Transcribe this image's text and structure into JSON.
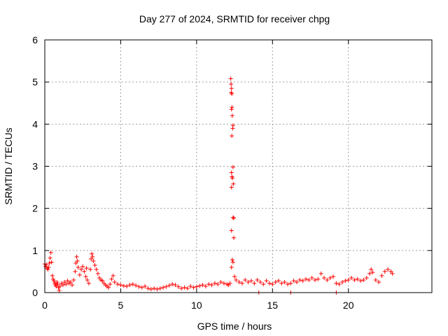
{
  "chart_data": {
    "type": "scatter",
    "title": "Day 277 of 2024, SRMTID for receiver chpg",
    "xlabel": "GPS time / hours",
    "ylabel": "SRMTID / TECUs",
    "xlim": [
      0,
      25.5
    ],
    "ylim": [
      0,
      6
    ],
    "xticks": [
      0,
      5,
      10,
      15,
      20
    ],
    "yticks": [
      0,
      1,
      2,
      3,
      4,
      5,
      6
    ],
    "grid": true,
    "marker": "+",
    "color": "#ff0000",
    "series": [
      {
        "name": "SRMTID",
        "points": [
          [
            0.0,
            0.68
          ],
          [
            0.05,
            0.62
          ],
          [
            0.1,
            0.66
          ],
          [
            0.15,
            0.58
          ],
          [
            0.2,
            0.55
          ],
          [
            0.25,
            0.6
          ],
          [
            0.3,
            0.7
          ],
          [
            0.35,
            0.82
          ],
          [
            0.4,
            0.95
          ],
          [
            0.45,
            0.72
          ],
          [
            0.5,
            0.4
          ],
          [
            0.55,
            0.32
          ],
          [
            0.6,
            0.28
          ],
          [
            0.65,
            0.22
          ],
          [
            0.7,
            0.18
          ],
          [
            0.75,
            0.15
          ],
          [
            0.8,
            0.25
          ],
          [
            0.85,
            0.2
          ],
          [
            0.9,
            0.12
          ],
          [
            0.95,
            0.05
          ],
          [
            1.0,
            0.15
          ],
          [
            1.1,
            0.22
          ],
          [
            1.2,
            0.18
          ],
          [
            1.3,
            0.25
          ],
          [
            1.4,
            0.2
          ],
          [
            1.5,
            0.28
          ],
          [
            1.6,
            0.22
          ],
          [
            1.7,
            0.25
          ],
          [
            1.8,
            0.18
          ],
          [
            1.9,
            0.3
          ],
          [
            2.0,
            0.5
          ],
          [
            2.05,
            0.7
          ],
          [
            2.1,
            0.85
          ],
          [
            2.15,
            0.75
          ],
          [
            2.2,
            0.6
          ],
          [
            2.3,
            0.42
          ],
          [
            2.4,
            0.55
          ],
          [
            2.5,
            0.62
          ],
          [
            2.6,
            0.5
          ],
          [
            2.7,
            0.38
          ],
          [
            2.75,
            0.58
          ],
          [
            2.8,
            0.3
          ],
          [
            2.9,
            0.22
          ],
          [
            3.0,
            0.55
          ],
          [
            3.05,
            0.8
          ],
          [
            3.1,
            0.92
          ],
          [
            3.15,
            0.85
          ],
          [
            3.2,
            0.75
          ],
          [
            3.3,
            0.65
          ],
          [
            3.4,
            0.55
          ],
          [
            3.5,
            0.45
          ],
          [
            3.6,
            0.35
          ],
          [
            3.7,
            0.3
          ],
          [
            3.8,
            0.28
          ],
          [
            3.9,
            0.22
          ],
          [
            4.0,
            0.18
          ],
          [
            4.1,
            0.15
          ],
          [
            4.2,
            0.12
          ],
          [
            4.3,
            0.2
          ],
          [
            4.4,
            0.32
          ],
          [
            4.5,
            0.4
          ],
          [
            4.6,
            0.25
          ],
          [
            4.8,
            0.2
          ],
          [
            5.0,
            0.18
          ],
          [
            5.2,
            0.16
          ],
          [
            5.4,
            0.15
          ],
          [
            5.6,
            0.18
          ],
          [
            5.8,
            0.2
          ],
          [
            6.0,
            0.17
          ],
          [
            6.2,
            0.14
          ],
          [
            6.4,
            0.12
          ],
          [
            6.6,
            0.15
          ],
          [
            6.8,
            0.1
          ],
          [
            7.0,
            0.08
          ],
          [
            7.2,
            0.1
          ],
          [
            7.4,
            0.08
          ],
          [
            7.6,
            0.1
          ],
          [
            7.8,
            0.12
          ],
          [
            8.0,
            0.14
          ],
          [
            8.2,
            0.17
          ],
          [
            8.4,
            0.2
          ],
          [
            8.6,
            0.18
          ],
          [
            8.8,
            0.14
          ],
          [
            9.0,
            0.1
          ],
          [
            9.2,
            0.12
          ],
          [
            9.4,
            0.1
          ],
          [
            9.6,
            0.15
          ],
          [
            9.8,
            0.12
          ],
          [
            10.0,
            0.14
          ],
          [
            10.2,
            0.16
          ],
          [
            10.4,
            0.18
          ],
          [
            10.6,
            0.15
          ],
          [
            10.8,
            0.2
          ],
          [
            11.0,
            0.18
          ],
          [
            11.2,
            0.22
          ],
          [
            11.4,
            0.2
          ],
          [
            11.6,
            0.25
          ],
          [
            11.8,
            0.22
          ],
          [
            12.0,
            0.2
          ],
          [
            12.1,
            0.18
          ],
          [
            12.2,
            0.22
          ],
          [
            12.25,
            5.08
          ],
          [
            12.27,
            4.95
          ],
          [
            12.3,
            4.85
          ],
          [
            12.28,
            4.75
          ],
          [
            12.32,
            4.72
          ],
          [
            12.33,
            4.4
          ],
          [
            12.3,
            4.35
          ],
          [
            12.35,
            4.2
          ],
          [
            12.4,
            3.97
          ],
          [
            12.38,
            3.9
          ],
          [
            12.32,
            3.72
          ],
          [
            12.4,
            2.98
          ],
          [
            12.3,
            2.85
          ],
          [
            12.33,
            2.75
          ],
          [
            12.36,
            2.72
          ],
          [
            12.42,
            2.58
          ],
          [
            12.3,
            2.5
          ],
          [
            12.4,
            1.78
          ],
          [
            12.45,
            1.77
          ],
          [
            12.3,
            1.47
          ],
          [
            12.45,
            1.3
          ],
          [
            12.35,
            0.78
          ],
          [
            12.4,
            0.72
          ],
          [
            12.3,
            0.6
          ],
          [
            12.5,
            0.38
          ],
          [
            12.6,
            0.3
          ],
          [
            12.8,
            0.25
          ],
          [
            13.0,
            0.22
          ],
          [
            13.2,
            0.3
          ],
          [
            13.4,
            0.25
          ],
          [
            13.6,
            0.28
          ],
          [
            13.8,
            0.22
          ],
          [
            14.0,
            0.3
          ],
          [
            14.2,
            0.25
          ],
          [
            14.4,
            0.2
          ],
          [
            14.6,
            0.28
          ],
          [
            14.8,
            0.22
          ],
          [
            15.0,
            0.2
          ],
          [
            15.2,
            0.25
          ],
          [
            15.4,
            0.28
          ],
          [
            15.6,
            0.22
          ],
          [
            15.8,
            0.25
          ],
          [
            16.0,
            0.2
          ],
          [
            16.2,
            0.22
          ],
          [
            16.4,
            0.28
          ],
          [
            16.6,
            0.25
          ],
          [
            16.8,
            0.3
          ],
          [
            17.0,
            0.28
          ],
          [
            17.2,
            0.32
          ],
          [
            17.4,
            0.3
          ],
          [
            17.6,
            0.35
          ],
          [
            17.8,
            0.3
          ],
          [
            18.0,
            0.32
          ],
          [
            18.2,
            0.45
          ],
          [
            18.4,
            0.35
          ],
          [
            18.6,
            0.3
          ],
          [
            18.8,
            0.35
          ],
          [
            19.0,
            0.38
          ],
          [
            19.2,
            0.22
          ],
          [
            19.4,
            0.2
          ],
          [
            19.6,
            0.25
          ],
          [
            19.8,
            0.28
          ],
          [
            20.0,
            0.3
          ],
          [
            20.2,
            0.35
          ],
          [
            20.4,
            0.3
          ],
          [
            20.6,
            0.32
          ],
          [
            20.8,
            0.28
          ],
          [
            21.0,
            0.3
          ],
          [
            21.2,
            0.35
          ],
          [
            21.4,
            0.45
          ],
          [
            21.5,
            0.55
          ],
          [
            21.6,
            0.48
          ],
          [
            21.8,
            0.3
          ],
          [
            22.0,
            0.25
          ],
          [
            22.2,
            0.4
          ],
          [
            22.4,
            0.5
          ],
          [
            22.6,
            0.55
          ],
          [
            22.8,
            0.5
          ],
          [
            22.9,
            0.45
          ],
          [
            14.1,
            0.0
          ],
          [
            16.2,
            0.0
          ],
          [
            19.2,
            0.0
          ]
        ]
      }
    ]
  }
}
